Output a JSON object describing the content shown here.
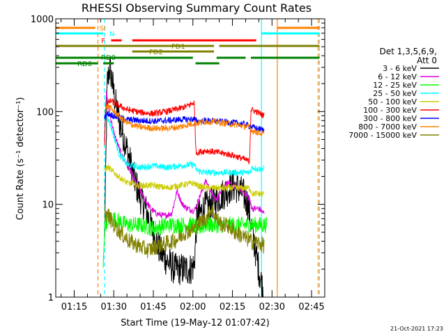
{
  "chart_data": {
    "type": "line",
    "title": "RHESSI Observing Summary Count Rates",
    "xlabel": "Start Time (19-May-12 01:07:42)",
    "ylabel": "Count Rate (s⁻¹ detector⁻¹)",
    "yscale": "log",
    "ylim": [
      1,
      1000
    ],
    "xlim_minutes": [
      68,
      170
    ],
    "x_ticks": [
      {
        "t": 75,
        "label": "01:15"
      },
      {
        "t": 90,
        "label": "01:30"
      },
      {
        "t": 105,
        "label": "01:45"
      },
      {
        "t": 120,
        "label": "02:00"
      },
      {
        "t": 135,
        "label": "02:15"
      },
      {
        "t": 150,
        "label": "02:30"
      },
      {
        "t": 165,
        "label": "02:45"
      }
    ],
    "y_tick_labels": [
      {
        "v": 1,
        "label": "1"
      },
      {
        "v": 10,
        "label": "10"
      },
      {
        "v": 100,
        "label": "100"
      },
      {
        "v": 1000,
        "label": "1000"
      }
    ],
    "legend_title": [
      "Det 1,3,5,6,9,",
      "Att 0"
    ],
    "legend_position": "right",
    "grid": false,
    "series": [
      {
        "name": "3 - 6 keV",
        "color": "#000000",
        "points": [
          [
            86.5,
            4
          ],
          [
            87.5,
            200
          ],
          [
            88.5,
            300
          ],
          [
            89.5,
            200
          ],
          [
            90.5,
            130
          ],
          [
            92,
            80
          ],
          [
            94,
            50
          ],
          [
            96,
            30
          ],
          [
            98,
            18
          ],
          [
            100,
            12
          ],
          [
            102,
            9
          ],
          [
            104,
            6
          ],
          [
            106,
            4
          ],
          [
            108,
            3
          ],
          [
            110,
            2.5
          ],
          [
            113,
            2
          ],
          [
            116,
            2
          ],
          [
            119,
            2
          ],
          [
            120.5,
            2.2
          ],
          [
            121.5,
            7
          ],
          [
            124,
            9
          ],
          [
            127,
            10
          ],
          [
            130,
            12
          ],
          [
            133,
            14
          ],
          [
            135,
            16
          ],
          [
            137,
            15
          ],
          [
            139,
            13
          ],
          [
            141,
            10
          ],
          [
            142.5,
            5
          ],
          [
            145,
            2
          ],
          [
            147,
            1
          ]
        ]
      },
      {
        "name": "6 - 12 keV",
        "color": "#dd00dd",
        "points": [
          [
            86.5,
            50
          ],
          [
            87.2,
            160
          ],
          [
            88,
            110
          ],
          [
            90,
            60
          ],
          [
            92,
            40
          ],
          [
            94,
            30
          ],
          [
            96,
            24
          ],
          [
            98,
            18
          ],
          [
            100,
            14
          ],
          [
            102,
            11
          ],
          [
            104,
            9
          ],
          [
            106,
            8
          ],
          [
            109,
            7.5
          ],
          [
            112,
            8
          ],
          [
            114,
            14
          ],
          [
            116,
            10
          ],
          [
            118,
            9
          ],
          [
            120.5,
            8.5
          ],
          [
            121.5,
            10
          ],
          [
            123,
            13
          ],
          [
            125,
            18
          ],
          [
            127,
            13
          ],
          [
            129,
            11
          ],
          [
            131,
            15
          ],
          [
            133,
            17
          ],
          [
            135,
            16
          ],
          [
            137,
            15
          ],
          [
            139,
            14
          ],
          [
            141,
            12
          ],
          [
            142.5,
            9
          ],
          [
            145,
            9
          ],
          [
            147,
            8
          ]
        ]
      },
      {
        "name": "12 - 25 keV",
        "color": "#00ff00",
        "points": [
          [
            86,
            2
          ],
          [
            86.5,
            6
          ],
          [
            88,
            7
          ],
          [
            90,
            7
          ],
          [
            95,
            6
          ],
          [
            100,
            6
          ],
          [
            105,
            5.5
          ],
          [
            110,
            6
          ],
          [
            115,
            6
          ],
          [
            120,
            6
          ],
          [
            121.5,
            5.5
          ],
          [
            125,
            6
          ],
          [
            130,
            6
          ],
          [
            135,
            6
          ],
          [
            140,
            6
          ],
          [
            145,
            6
          ],
          [
            148,
            6
          ]
        ]
      },
      {
        "name": "25 - 50 keV",
        "color": "#00ffff",
        "points": [
          [
            86.5,
            80
          ],
          [
            87.5,
            90
          ],
          [
            88.5,
            75
          ],
          [
            90,
            55
          ],
          [
            92,
            35
          ],
          [
            95,
            27
          ],
          [
            100,
            25
          ],
          [
            105,
            26
          ],
          [
            110,
            25
          ],
          [
            115,
            26
          ],
          [
            120.5,
            27
          ],
          [
            121.5,
            23
          ],
          [
            125,
            22
          ],
          [
            130,
            22
          ],
          [
            135,
            22
          ],
          [
            139,
            22
          ],
          [
            141.5,
            22
          ],
          [
            142.5,
            25
          ],
          [
            145,
            24
          ],
          [
            147,
            24
          ]
        ]
      },
      {
        "name": "50 - 100 keV",
        "color": "#cccc00",
        "points": [
          [
            86.5,
            24
          ],
          [
            88,
            25
          ],
          [
            90,
            22
          ],
          [
            95,
            17
          ],
          [
            100,
            16
          ],
          [
            105,
            16
          ],
          [
            110,
            15
          ],
          [
            115,
            16
          ],
          [
            120.5,
            17
          ],
          [
            121.5,
            16
          ],
          [
            125,
            15
          ],
          [
            130,
            15
          ],
          [
            135,
            15
          ],
          [
            139,
            15
          ],
          [
            141.5,
            15
          ],
          [
            142.5,
            13
          ],
          [
            145,
            13
          ],
          [
            147,
            13
          ]
        ]
      },
      {
        "name": "100 - 300 keV",
        "color": "#ff0000",
        "points": [
          [
            86.5,
            45
          ],
          [
            87,
            120
          ],
          [
            89,
            130
          ],
          [
            91,
            120
          ],
          [
            95,
            105
          ],
          [
            100,
            98
          ],
          [
            105,
            95
          ],
          [
            110,
            100
          ],
          [
            115,
            108
          ],
          [
            118,
            115
          ],
          [
            120.5,
            125
          ],
          [
            121.2,
            36
          ],
          [
            125,
            38
          ],
          [
            130,
            36
          ],
          [
            135,
            34
          ],
          [
            139,
            31
          ],
          [
            141.5,
            29
          ],
          [
            142,
            105
          ],
          [
            144,
            100
          ],
          [
            147,
            90
          ]
        ]
      },
      {
        "name": "300 - 800 keV",
        "color": "#0000ff",
        "points": [
          [
            86.5,
            90
          ],
          [
            88,
            95
          ],
          [
            90,
            90
          ],
          [
            95,
            82
          ],
          [
            100,
            80
          ],
          [
            105,
            79
          ],
          [
            110,
            80
          ],
          [
            115,
            82
          ],
          [
            120.5,
            83
          ],
          [
            121.5,
            78
          ],
          [
            125,
            80
          ],
          [
            130,
            78
          ],
          [
            135,
            76
          ],
          [
            139,
            74
          ],
          [
            141.5,
            70
          ],
          [
            142.5,
            68
          ],
          [
            145,
            65
          ],
          [
            147,
            63
          ]
        ]
      },
      {
        "name": "800 - 7000 keV",
        "color": "#ff8000",
        "points": [
          [
            86.5,
            105
          ],
          [
            88,
            115
          ],
          [
            90,
            100
          ],
          [
            95,
            75
          ],
          [
            100,
            68
          ],
          [
            105,
            66
          ],
          [
            110,
            66
          ],
          [
            115,
            68
          ],
          [
            118,
            72
          ],
          [
            120.5,
            75
          ],
          [
            121.5,
            75
          ],
          [
            125,
            78
          ],
          [
            128,
            78
          ],
          [
            130,
            76
          ],
          [
            135,
            73
          ],
          [
            139,
            70
          ],
          [
            141.5,
            68
          ],
          [
            142.5,
            62
          ],
          [
            145,
            59
          ],
          [
            147,
            57
          ]
        ]
      },
      {
        "name": "7000 - 15000 keV",
        "color": "#808000",
        "points": [
          [
            86.5,
            8
          ],
          [
            88,
            7.5
          ],
          [
            90,
            6
          ],
          [
            93,
            4.8
          ],
          [
            96,
            4
          ],
          [
            100,
            3.5
          ],
          [
            103,
            3.2
          ],
          [
            106,
            3.5
          ],
          [
            110,
            3.8
          ],
          [
            114,
            4.2
          ],
          [
            117,
            5
          ],
          [
            120.5,
            5.5
          ],
          [
            121.5,
            6
          ],
          [
            125,
            7
          ],
          [
            127,
            9
          ],
          [
            129,
            7
          ],
          [
            131,
            6
          ],
          [
            133,
            6
          ],
          [
            136,
            5
          ],
          [
            139,
            4.5
          ],
          [
            142,
            4
          ],
          [
            145,
            3.8
          ],
          [
            147,
            3.6
          ]
        ]
      }
    ],
    "flag_bars": [
      {
        "label": "SI",
        "color": "#ff8000",
        "segments": [
          [
            68,
            83
          ],
          [
            152,
            168
          ]
        ]
      },
      {
        "label": "N",
        "color": "#00ffff",
        "segments": [
          [
            68,
            86
          ],
          [
            146,
            168
          ]
        ]
      },
      {
        "label": "F",
        "color": "#ff0000",
        "segments": [
          [
            89,
            93
          ],
          [
            97,
            144
          ]
        ]
      },
      {
        "label": "FD1",
        "color": "#808000",
        "segments": [
          [
            68,
            128
          ],
          [
            130,
            168
          ]
        ]
      },
      {
        "label": "FD2",
        "color": "#808000",
        "segments": [
          [
            97,
            128
          ]
        ]
      },
      {
        "label": "RD0",
        "color": "#008000",
        "segments": [
          [
            68,
            120
          ],
          [
            129,
            140
          ],
          [
            142,
            168
          ]
        ]
      },
      {
        "label": "RD6",
        "color": "#008000",
        "segments": [
          [
            68,
            84
          ],
          [
            86,
            90
          ],
          [
            121,
            130
          ]
        ]
      }
    ],
    "vertical_markers": [
      {
        "t": 84,
        "color": "#ff8000",
        "style": "dashed"
      },
      {
        "t": 86.5,
        "color": "#00ffff",
        "style": "dashed"
      },
      {
        "t": 146,
        "color": "#00ffff",
        "style": "solid"
      },
      {
        "t": 152,
        "color": "#ff8000",
        "style": "solid"
      },
      {
        "t": 167.5,
        "color": "#ff8000",
        "style": "dashed"
      },
      {
        "t": 168,
        "color": "#00ffff",
        "style": "dashed"
      }
    ],
    "footer": "21-Oct-2021 17:23"
  }
}
